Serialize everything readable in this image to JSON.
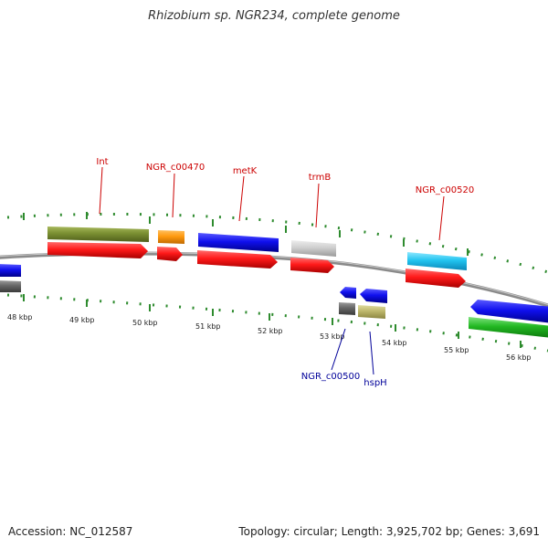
{
  "title": "Rhizobium sp. NGR234, complete genome",
  "footer": {
    "accession": "Accession: NC_012587",
    "summary": "Topology: circular; Length: 3,925,702 bp; Genes: 3,691"
  },
  "colors": {
    "top_label": "#cc0000",
    "bottom_label": "#000099",
    "backbone": "#888888",
    "tick": "#2e8b2e"
  },
  "scale_labels": [
    "48 kbp",
    "49 kbp",
    "50 kbp",
    "51 kbp",
    "52 kbp",
    "53 kbp",
    "54 kbp",
    "55 kbp",
    "56 kbp"
  ],
  "top_gene_labels": [
    "Int",
    "NGR_c00470",
    "metK",
    "trmB",
    "NGR_c00520"
  ],
  "bottom_gene_labels": [
    "NGR_c00500",
    "hspH"
  ]
}
